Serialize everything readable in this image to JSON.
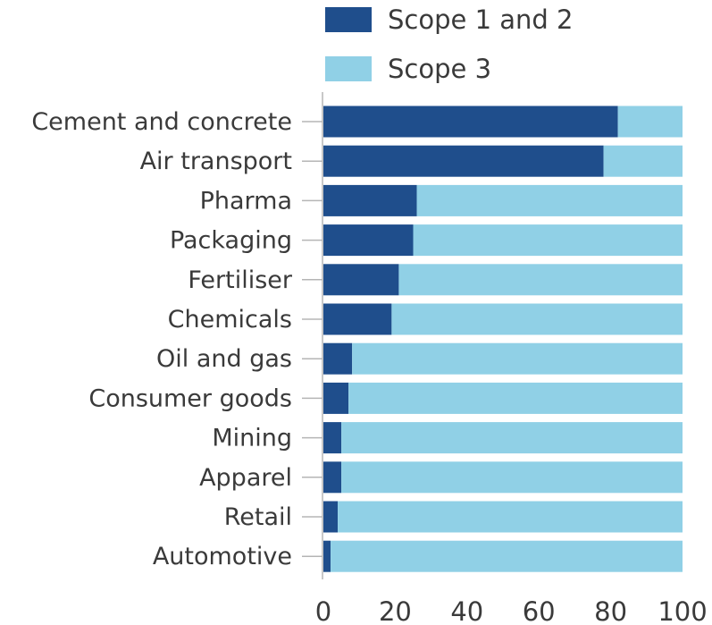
{
  "chart_data": {
    "type": "bar",
    "orientation": "horizontal",
    "stacked": true,
    "categories": [
      "Cement and concrete",
      "Air transport",
      "Pharma",
      "Packaging",
      "Fertiliser",
      "Chemicals",
      "Oil and gas",
      "Consumer goods",
      "Mining",
      "Apparel",
      "Retail",
      "Automotive"
    ],
    "series": [
      {
        "name": "Scope 1 and 2",
        "color": "#1f4e8c",
        "values": [
          82,
          78,
          26,
          25,
          21,
          19,
          8,
          7,
          5,
          5,
          4,
          2
        ]
      },
      {
        "name": "Scope 3",
        "color": "#90d0e6",
        "values": [
          18,
          22,
          74,
          75,
          79,
          81,
          92,
          93,
          95,
          95,
          96,
          98
        ]
      }
    ],
    "xlim": [
      0,
      100
    ],
    "xticks": [
      "0",
      "20",
      "40",
      "60",
      "80",
      "100"
    ],
    "grid": false,
    "legend_position": "top"
  }
}
